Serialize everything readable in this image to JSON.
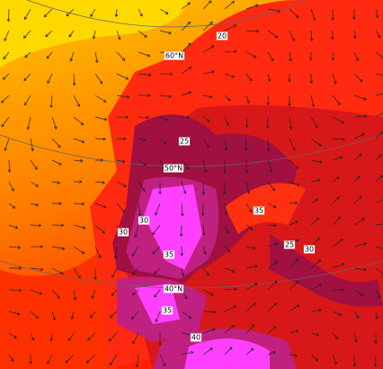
{
  "map": {
    "latitude_labels": [
      "60°N",
      "50°N",
      "40°N"
    ],
    "contour_labels": [
      "20",
      "25",
      "30",
      "30",
      "35",
      "35",
      "25",
      "30",
      "35",
      "40"
    ]
  }
}
